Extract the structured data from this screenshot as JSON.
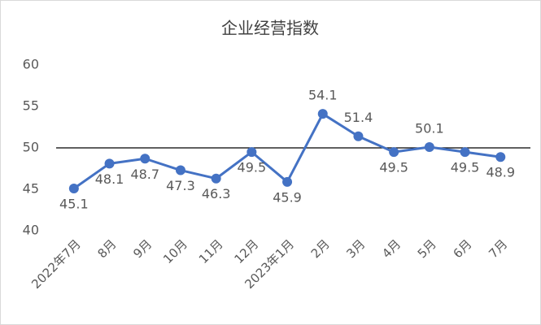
{
  "chart_data": {
    "type": "line",
    "title": "企业经营指数",
    "categories": [
      "2022年7月",
      "8月",
      "9月",
      "10月",
      "11月",
      "12月",
      "2023年1月",
      "2月",
      "3月",
      "4月",
      "5月",
      "6月",
      "7月"
    ],
    "series": [
      {
        "name": "企业经营指数",
        "color": "#4472c4",
        "values": [
          45.1,
          48.1,
          48.7,
          47.3,
          46.3,
          49.5,
          45.9,
          54.1,
          51.4,
          49.5,
          50.1,
          49.5,
          48.9
        ]
      }
    ],
    "ylim": [
      40,
      60
    ],
    "yticks": [
      40,
      45,
      50,
      55,
      60
    ],
    "reference_line": 50,
    "legend": false,
    "data_labels": true
  }
}
